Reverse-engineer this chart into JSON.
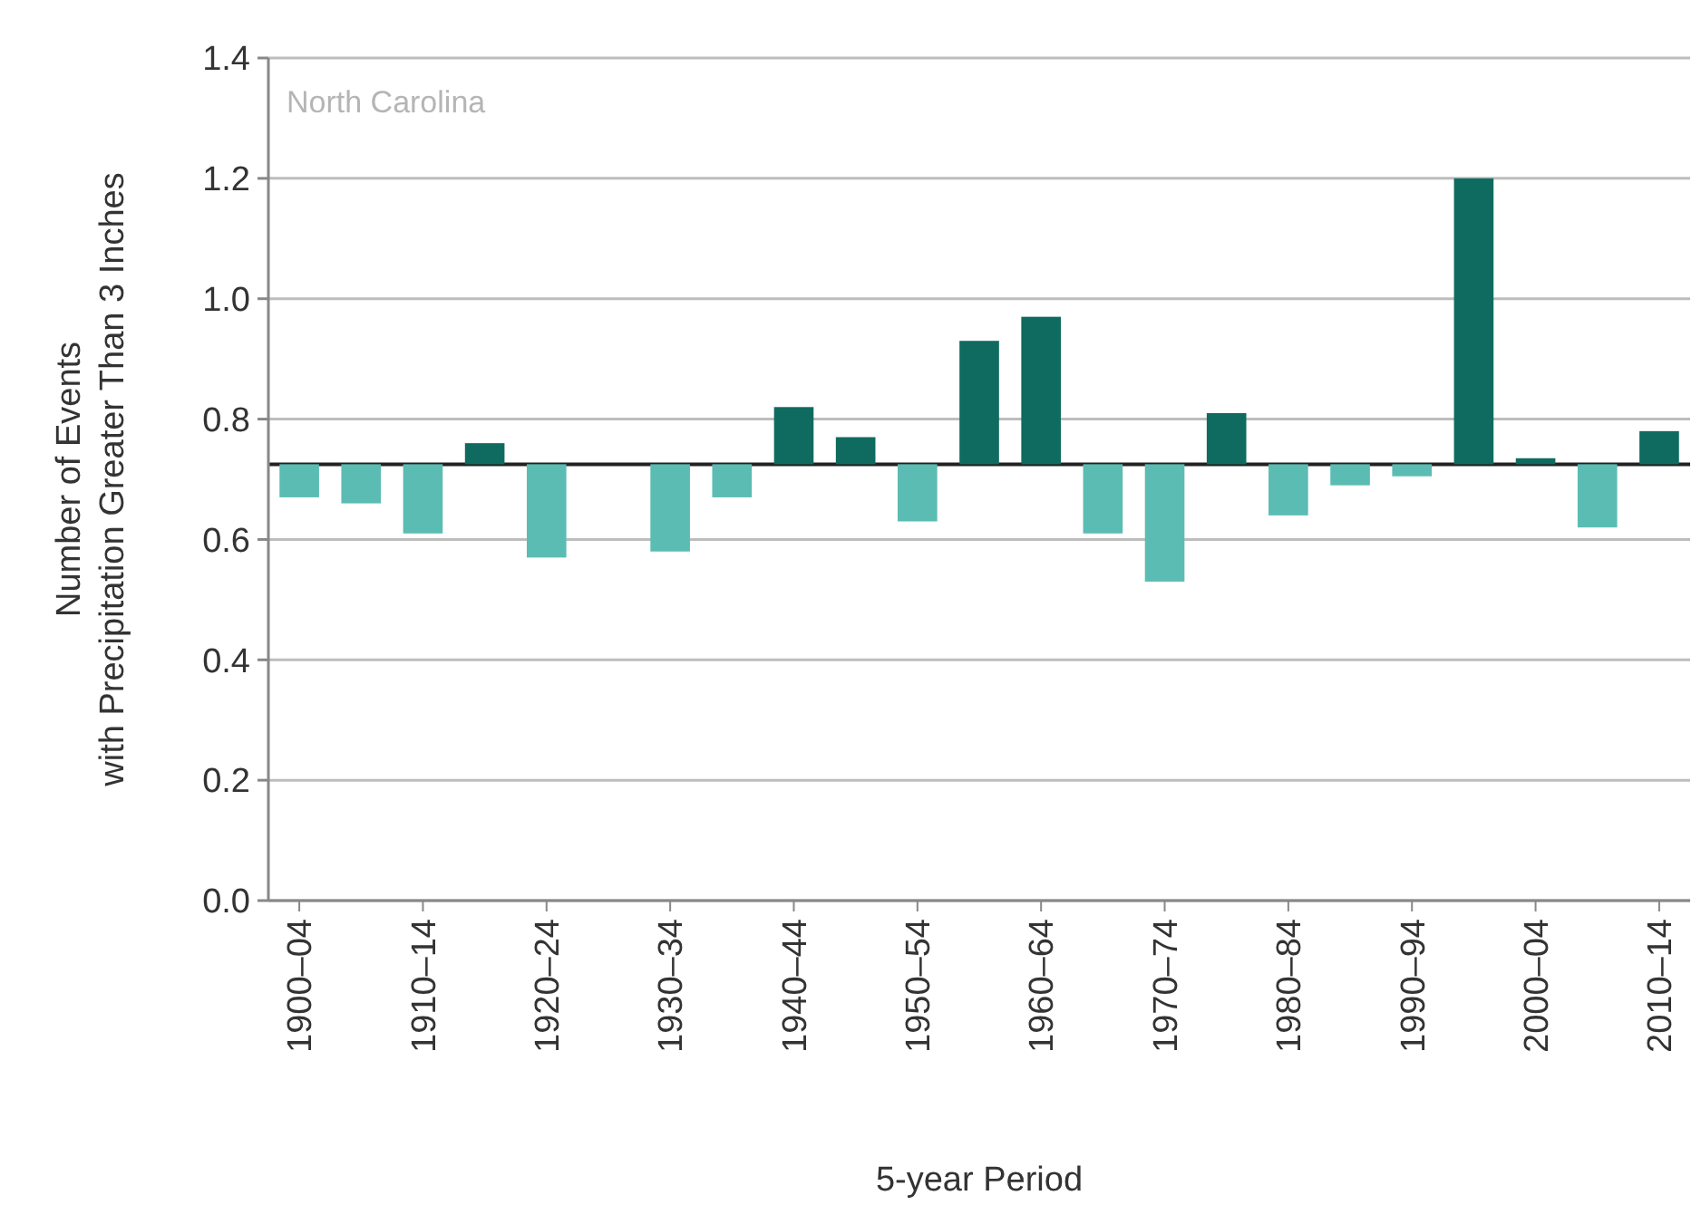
{
  "chart_data": {
    "type": "bar",
    "ylabel": "Number of Events\nwith Precipitation Greater Than 3 Inches",
    "xlabel": "5-year Period",
    "annotations": [
      "North Carolina"
    ],
    "categories": [
      "1900–04",
      null,
      "1910–14",
      null,
      "1920–24",
      null,
      "1930–34",
      null,
      "1940–44",
      null,
      "1950–54",
      null,
      "1960–64",
      null,
      "1970–74",
      null,
      "1980–84",
      null,
      "1990–94",
      null,
      "2000–04",
      null,
      "2010–14"
    ],
    "base": [
      0.725,
      0.725,
      0.725,
      0.725,
      0.725,
      null,
      0.725,
      0.725,
      0.725,
      0.725,
      0.725,
      0.725,
      0.725,
      0.725,
      0.725,
      0.725,
      0.725,
      0.725,
      0.725,
      0.725,
      0.725,
      0.725,
      0.725
    ],
    "values": [
      -0.055,
      -0.065,
      -0.115,
      0.035,
      -0.155,
      null,
      -0.145,
      -0.055,
      0.095,
      0.045,
      -0.095,
      0.205,
      0.245,
      -0.115,
      -0.195,
      0.085,
      -0.085,
      -0.035,
      -0.02,
      0.475,
      0.01,
      -0.105,
      0.055
    ],
    "colors": [
      "#5bbcb3",
      "#5bbcb3",
      "#5bbcb3",
      "#0f6b5f",
      "#5bbcb3",
      null,
      "#5bbcb3",
      "#5bbcb3",
      "#0f6b5f",
      "#0f6b5f",
      "#5bbcb3",
      "#0f6b5f",
      "#0f6b5f",
      "#5bbcb3",
      "#5bbcb3",
      "#0f6b5f",
      "#5bbcb3",
      "#5bbcb3",
      "#5bbcb3",
      "#0f6b5f",
      "#0f6b5f",
      "#5bbcb3",
      "#0f6b5f"
    ],
    "ref_lines": [
      {
        "axis": "y",
        "value": 0.725,
        "color": "#222222"
      }
    ],
    "ylim": [
      0,
      1.4
    ],
    "yticks": [
      {
        "value": 0,
        "label": "0.0"
      },
      {
        "value": 0.2,
        "label": "0.2"
      },
      {
        "value": 0.4,
        "label": "0.4"
      },
      {
        "value": 0.6,
        "label": "0.6"
      },
      {
        "value": 0.8,
        "label": "0.8"
      },
      {
        "value": 1,
        "label": "1.0"
      },
      {
        "value": 1.2,
        "label": "1.2"
      },
      {
        "value": 1.4,
        "label": "1.4"
      }
    ],
    "grid": "y"
  }
}
